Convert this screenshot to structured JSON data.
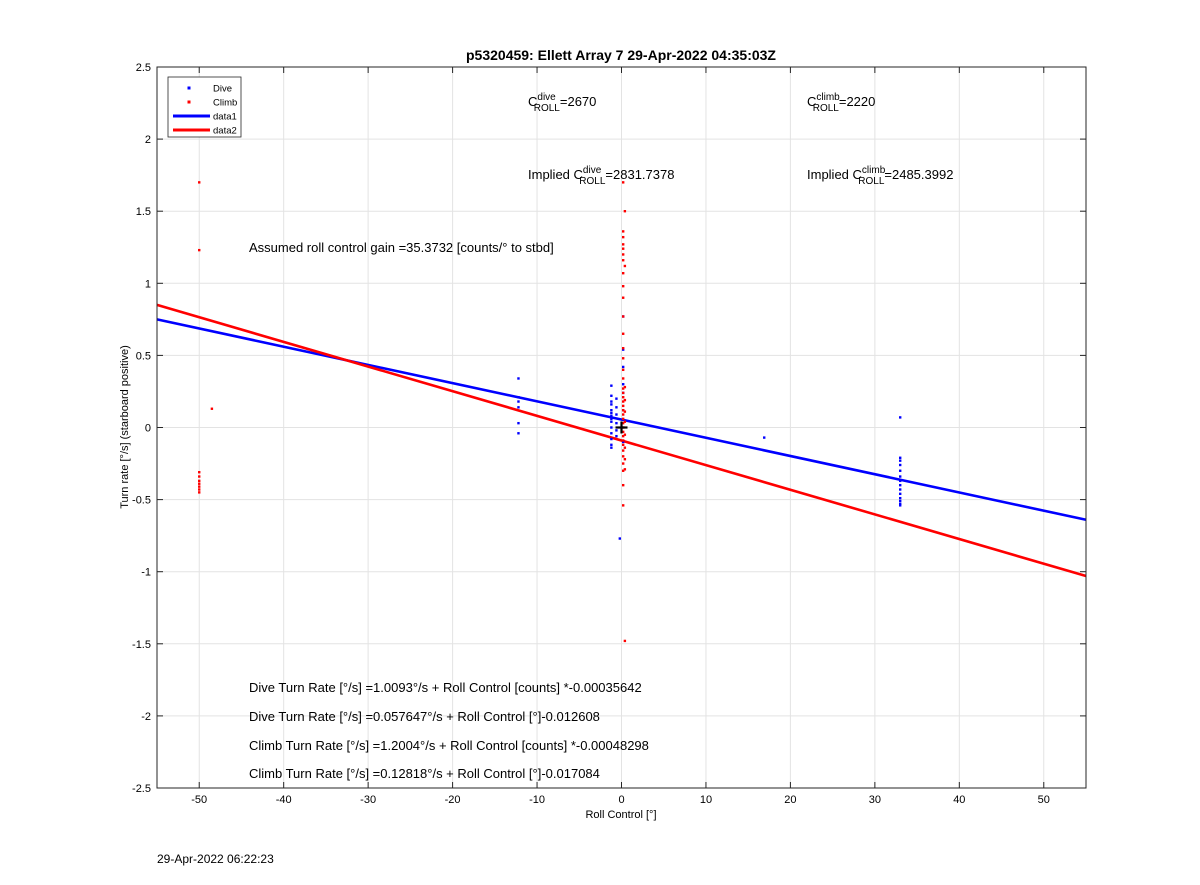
{
  "chart_data": {
    "type": "scatter",
    "title": "p5320459: Ellett Array 7 29-Apr-2022 04:35:03Z",
    "xlabel": "Roll Control [°]",
    "ylabel": "Turn rate [°/s] (starboard positive)",
    "xlim": [
      -55,
      55
    ],
    "ylim": [
      -2.5,
      2.5
    ],
    "xticks": [
      -50,
      -40,
      -30,
      -20,
      -10,
      0,
      10,
      20,
      30,
      40,
      50
    ],
    "yticks": [
      -2.5,
      -2,
      -1.5,
      -1,
      -0.5,
      0,
      0.5,
      1,
      1.5,
      2,
      2.5
    ],
    "grid": true,
    "legend_position": "top-left",
    "series": [
      {
        "name": "Dive",
        "kind": "points",
        "color": "#0000ff",
        "x": [
          -12.2,
          -12.2,
          -12.2,
          -12.2,
          -12.2,
          -12.2,
          -1.2,
          -1.2,
          -1.2,
          -1.2,
          -1.2,
          -1.2,
          -1.2,
          -1.2,
          -1.2,
          -1.2,
          -1.2,
          -1.2,
          -1.2,
          -1.2,
          -0.6,
          -0.6,
          -0.6,
          -0.6,
          -0.6,
          -0.6,
          -0.2,
          0.2,
          0.2,
          0.2,
          0.2,
          0.2,
          0.2,
          0.2,
          16.9,
          33,
          33,
          33,
          33,
          33,
          33,
          33,
          33,
          33,
          33,
          33,
          33,
          33,
          33
        ],
        "y": [
          0.34,
          0.21,
          0.14,
          0.03,
          -0.04,
          0.18,
          0.29,
          0.22,
          0.16,
          0.12,
          0.08,
          0.04,
          0.0,
          -0.04,
          -0.08,
          -0.12,
          -0.14,
          0.18,
          0.1,
          0.06,
          0.2,
          0.14,
          0.09,
          0.03,
          -0.02,
          -0.06,
          -0.77,
          0.77,
          0.54,
          0.42,
          0.3,
          0.24,
          0.12,
          -0.1,
          -0.07,
          0.07,
          -0.21,
          -0.23,
          -0.26,
          -0.3,
          -0.34,
          -0.37,
          -0.4,
          -0.43,
          -0.46,
          -0.49,
          -0.51,
          -0.53,
          -0.54
        ]
      },
      {
        "name": "Climb",
        "kind": "points",
        "color": "#ff0000",
        "x": [
          -50,
          -50,
          -50,
          -50,
          -50,
          -50,
          -50,
          -50,
          -50,
          -48.5,
          0.2,
          0.2,
          0.2,
          0.2,
          0.2,
          0.2,
          0.2,
          0.2,
          0.2,
          0.2,
          0.2,
          0.2,
          0.2,
          0.2,
          0.2,
          0.2,
          0.2,
          0.2,
          0.2,
          0.2,
          0.2,
          0.2,
          0.2,
          0.2,
          0.2,
          0.2,
          0.2,
          0.2,
          0.2,
          0.2,
          0.2,
          0.2,
          0.2,
          0.2,
          0.2,
          0.2,
          0.4,
          0.4,
          0.4,
          0.4,
          0.4,
          0.4,
          0.4,
          0.4,
          0.4,
          0.4,
          0.4
        ],
        "y": [
          1.7,
          1.23,
          -0.31,
          -0.34,
          -0.37,
          -0.39,
          -0.41,
          -0.43,
          -0.45,
          0.13,
          1.7,
          1.36,
          1.32,
          1.27,
          1.24,
          1.2,
          1.16,
          1.07,
          0.98,
          0.9,
          0.77,
          0.65,
          0.55,
          0.48,
          0.4,
          0.34,
          0.27,
          0.24,
          0.21,
          0.18,
          0.15,
          0.12,
          0.09,
          0.06,
          0.03,
          0.0,
          -0.03,
          -0.06,
          -0.09,
          -0.12,
          -0.16,
          -0.2,
          -0.25,
          -0.3,
          -0.4,
          -0.54,
          1.5,
          1.12,
          0.28,
          0.19,
          0.11,
          0.04,
          -0.05,
          -0.14,
          -0.22,
          -0.29,
          -1.48
        ]
      },
      {
        "name": "data1",
        "kind": "line",
        "color": "#0000ff",
        "x": [
          -55,
          55
        ],
        "y": [
          0.75,
          -0.64
        ]
      },
      {
        "name": "data2",
        "kind": "line",
        "color": "#ff0000",
        "x": [
          -55,
          55
        ],
        "y": [
          0.85,
          -1.03
        ]
      }
    ],
    "marker": {
      "x": 0,
      "y": 0,
      "symbol": "+"
    },
    "annotations": {
      "c_roll_dive": {
        "label": "C",
        "sup": "dive",
        "sub": "ROLL",
        "value": "=2670"
      },
      "c_roll_climb": {
        "label": "C",
        "sup": "climb",
        "sub": "ROLL",
        "value": "=2220"
      },
      "implied_dive": {
        "label": "Implied C",
        "sup": "dive",
        "sub": "ROLL",
        "value": "=2831.7378"
      },
      "implied_climb": {
        "label": "Implied C",
        "sup": "climb",
        "sub": "ROLL",
        "value": "=2485.3992"
      },
      "gain": "Assumed roll control gain =35.3732 [counts/° to stbd]",
      "equations": [
        "Dive Turn Rate [°/s] =1.0093°/s + Roll Control [counts] *-0.00035642",
        "Dive Turn Rate [°/s] =0.057647°/s + Roll Control [°]-0.012608",
        "Climb Turn Rate [°/s] =1.2004°/s + Roll Control [counts] *-0.00048298",
        "Climb Turn Rate [°/s] =0.12818°/s + Roll Control [°]-0.017084"
      ]
    }
  },
  "footer_timestamp": "29-Apr-2022 06:22:23"
}
